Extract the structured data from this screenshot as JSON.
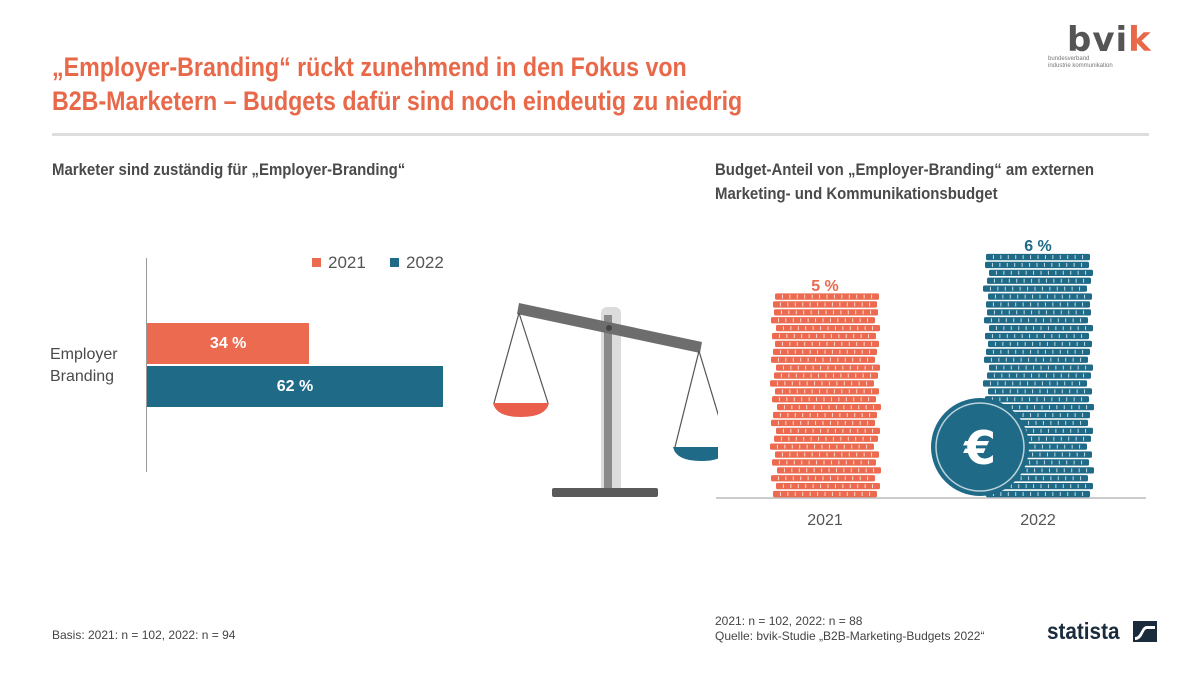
{
  "title": {
    "line1": "„Employer-Branding“ rückt zunehmend in den Fokus von",
    "line2": "B2B-Marketern – Budgets dafür sind noch eindeutig zu niedrig"
  },
  "logo": {
    "brand_start": "bvi",
    "brand_k": "k",
    "tagline1": "bundesverband",
    "tagline2": "industrie kommunikation",
    "icon": "bvik-logo"
  },
  "left_panel": {
    "subtitle": "Marketer sind zuständig für „Employer-Branding“"
  },
  "right_panel": {
    "subtitle_line1": "Budget-Anteil von „Employer-Branding“ am externen",
    "subtitle_line2": "Marketing- und Kommunikationsbudget"
  },
  "colors": {
    "accent": "#e8694a",
    "y2021": "#ec6a4f",
    "y2022": "#1e6a87",
    "coin": "#1e6a87"
  },
  "chart_data": [
    {
      "type": "bar",
      "orientation": "horizontal",
      "categories": [
        "Employer Branding"
      ],
      "category_lines": [
        "Employer",
        "Branding"
      ],
      "series": [
        {
          "name": "2021",
          "values": [
            34
          ],
          "label": "34 %"
        },
        {
          "name": "2022",
          "values": [
            62
          ],
          "label": "62 %"
        }
      ],
      "legend": "top-right",
      "unit": "%"
    },
    {
      "type": "bar",
      "style": "coin-stacks",
      "categories": [
        "2021",
        "2022"
      ],
      "values": [
        5,
        6
      ],
      "labels": [
        "5 %",
        "6 %"
      ],
      "unit": "%",
      "decorations": [
        "balance-scale-icon",
        "euro-coin-icon"
      ]
    }
  ],
  "footnotes": {
    "left": "Basis: 2021: n = 102, 2022: n = 94",
    "right_line1": "2021: n = 102, 2022: n = 88",
    "right_line2": "Quelle: bvik-Studie „B2B-Marketing-Budgets 2022“"
  },
  "statista": {
    "name": "statista",
    "icon": "statista-logo-icon"
  }
}
